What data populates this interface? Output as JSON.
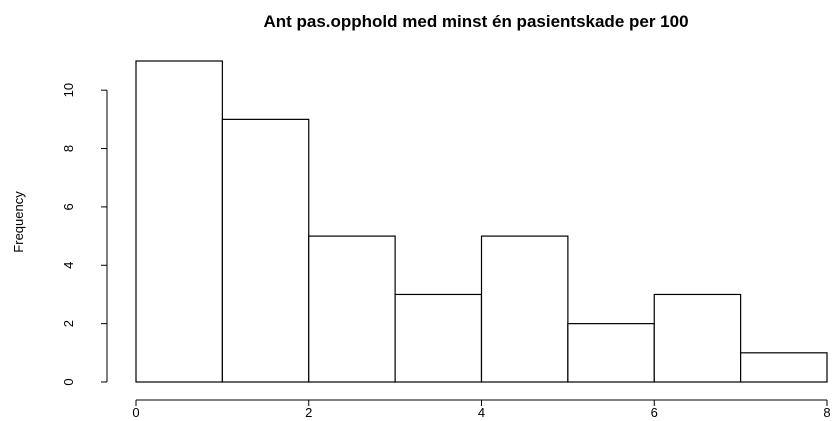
{
  "chart_data": {
    "type": "bar",
    "title": "Ant pas.opphold med minst én pasientskade per 100",
    "xlabel": "",
    "ylabel": "Frequency",
    "bins": [
      {
        "from": 0,
        "to": 1,
        "count": 11
      },
      {
        "from": 1,
        "to": 2,
        "count": 9
      },
      {
        "from": 2,
        "to": 3,
        "count": 5
      },
      {
        "from": 3,
        "to": 4,
        "count": 3
      },
      {
        "from": 4,
        "to": 5,
        "count": 5
      },
      {
        "from": 5,
        "to": 6,
        "count": 2
      },
      {
        "from": 6,
        "to": 7,
        "count": 3
      },
      {
        "from": 7,
        "to": 8,
        "count": 1
      }
    ],
    "xlim": [
      0,
      8
    ],
    "ylim": [
      0,
      11
    ],
    "xticks": [
      "0",
      "2",
      "4",
      "6",
      "8"
    ],
    "yticks": [
      "0",
      "2",
      "4",
      "6",
      "8",
      "10"
    ],
    "grid": false,
    "legend": "none"
  }
}
